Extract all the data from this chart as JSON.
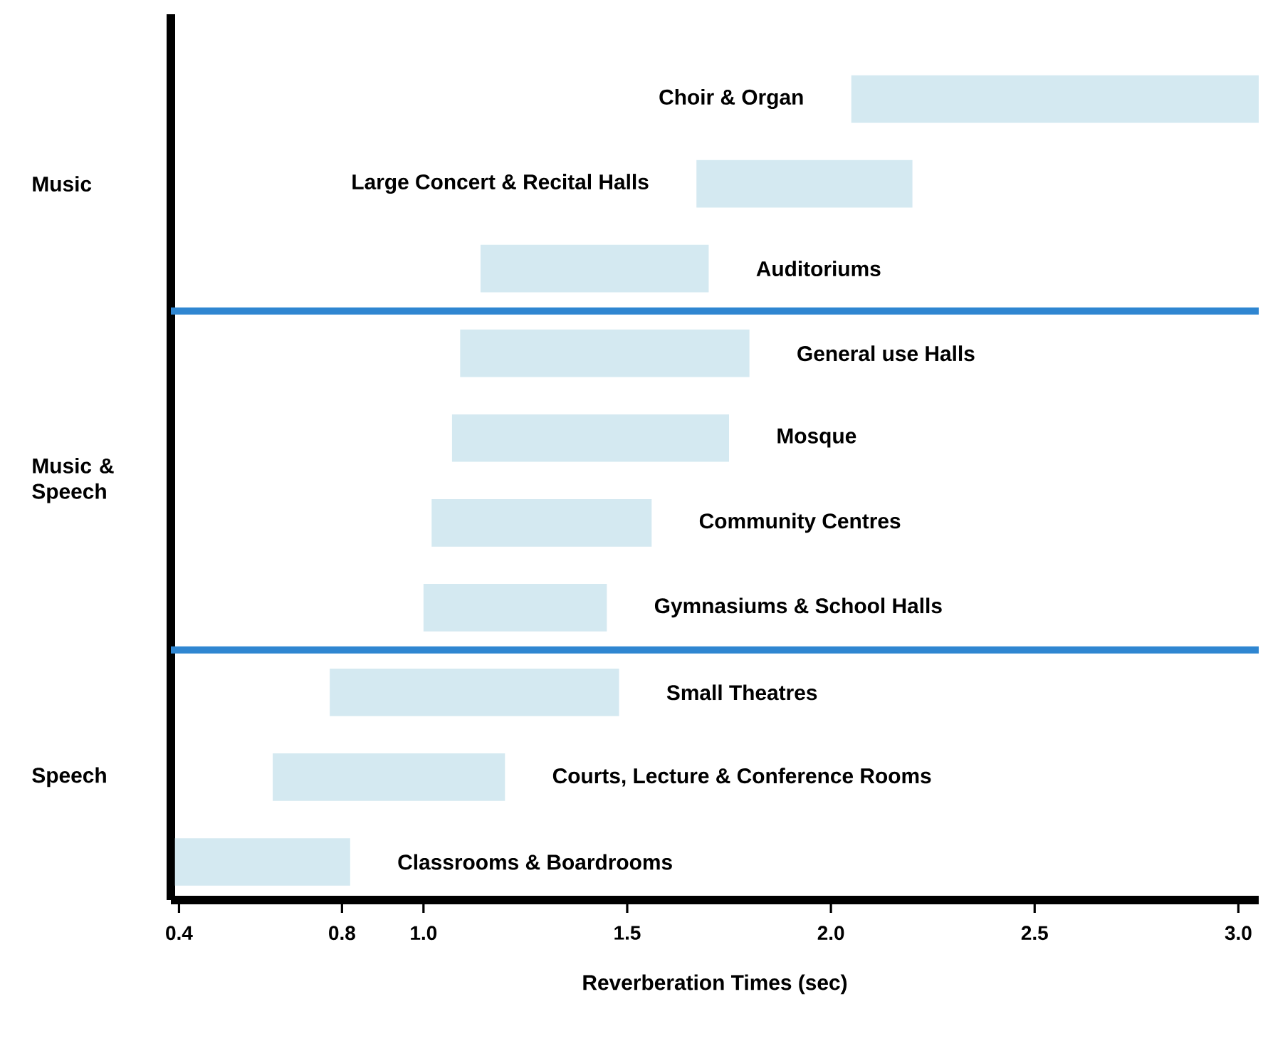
{
  "chart_data": {
    "type": "bar",
    "orientation": "horizontal",
    "xlabel": "Reverberation Times (sec)",
    "categories": [
      "Choir & Organ",
      "Large Concert & Recital Halls",
      "Auditoriums",
      "General use Halls",
      "Mosque",
      "Community Centres",
      "Gymnasiums & School Halls",
      "Small Theatres",
      "Courts, Lecture & Conference Rooms",
      "Classrooms & Boardrooms"
    ],
    "base": [
      2.05,
      1.67,
      1.14,
      1.09,
      1.07,
      1.02,
      1.0,
      0.77,
      0.63,
      0.39
    ],
    "values": [
      1.0,
      0.53,
      0.56,
      0.71,
      0.68,
      0.54,
      0.45,
      0.71,
      0.57,
      0.43
    ],
    "color": "#d4e9f1",
    "xlim": [
      0.38,
      3.05
    ],
    "xticks": [
      0.4,
      0.8,
      {
        "value": 1,
        "label": "1.0"
      },
      1.5,
      {
        "value": 2,
        "label": "2.0"
      },
      2.5,
      {
        "value": 3,
        "label": "3.0"
      }
    ],
    "annotations": [
      "Music",
      "Music & Speech",
      "Speech"
    ],
    "grid": false
  }
}
